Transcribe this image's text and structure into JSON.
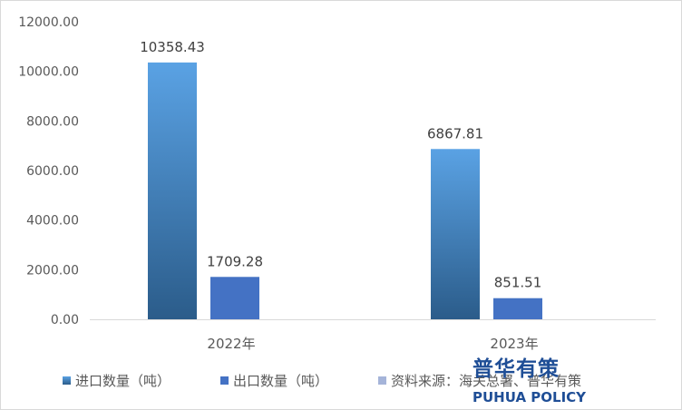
{
  "chart_data": {
    "type": "bar",
    "categories": [
      "2022年",
      "2023年"
    ],
    "series": [
      {
        "name": "进口数量（吨）",
        "values": [
          10358.43,
          6867.81
        ],
        "color": "#4a8fd4"
      },
      {
        "name": "出口数量（吨）",
        "values": [
          1709.28,
          851.51
        ],
        "color": "#4472c4"
      }
    ],
    "data_labels": {
      "进口数量（吨）": [
        "10358.43",
        "6867.81"
      ],
      "出口数量（吨）": [
        "1709.28",
        "851.51"
      ]
    },
    "yticks": [
      "0.00",
      "2000.00",
      "4000.00",
      "6000.00",
      "8000.00",
      "10000.00",
      "12000.00"
    ],
    "ylim": [
      0,
      12000
    ],
    "grid": false,
    "legend_position": "bottom",
    "source_label": "资料来源：海关总署、普华有策",
    "source_color": "#a5b4d9"
  },
  "watermark": {
    "cn": "普华有策",
    "en": "PUHUA POLICY",
    "color": "#1f4e96"
  }
}
